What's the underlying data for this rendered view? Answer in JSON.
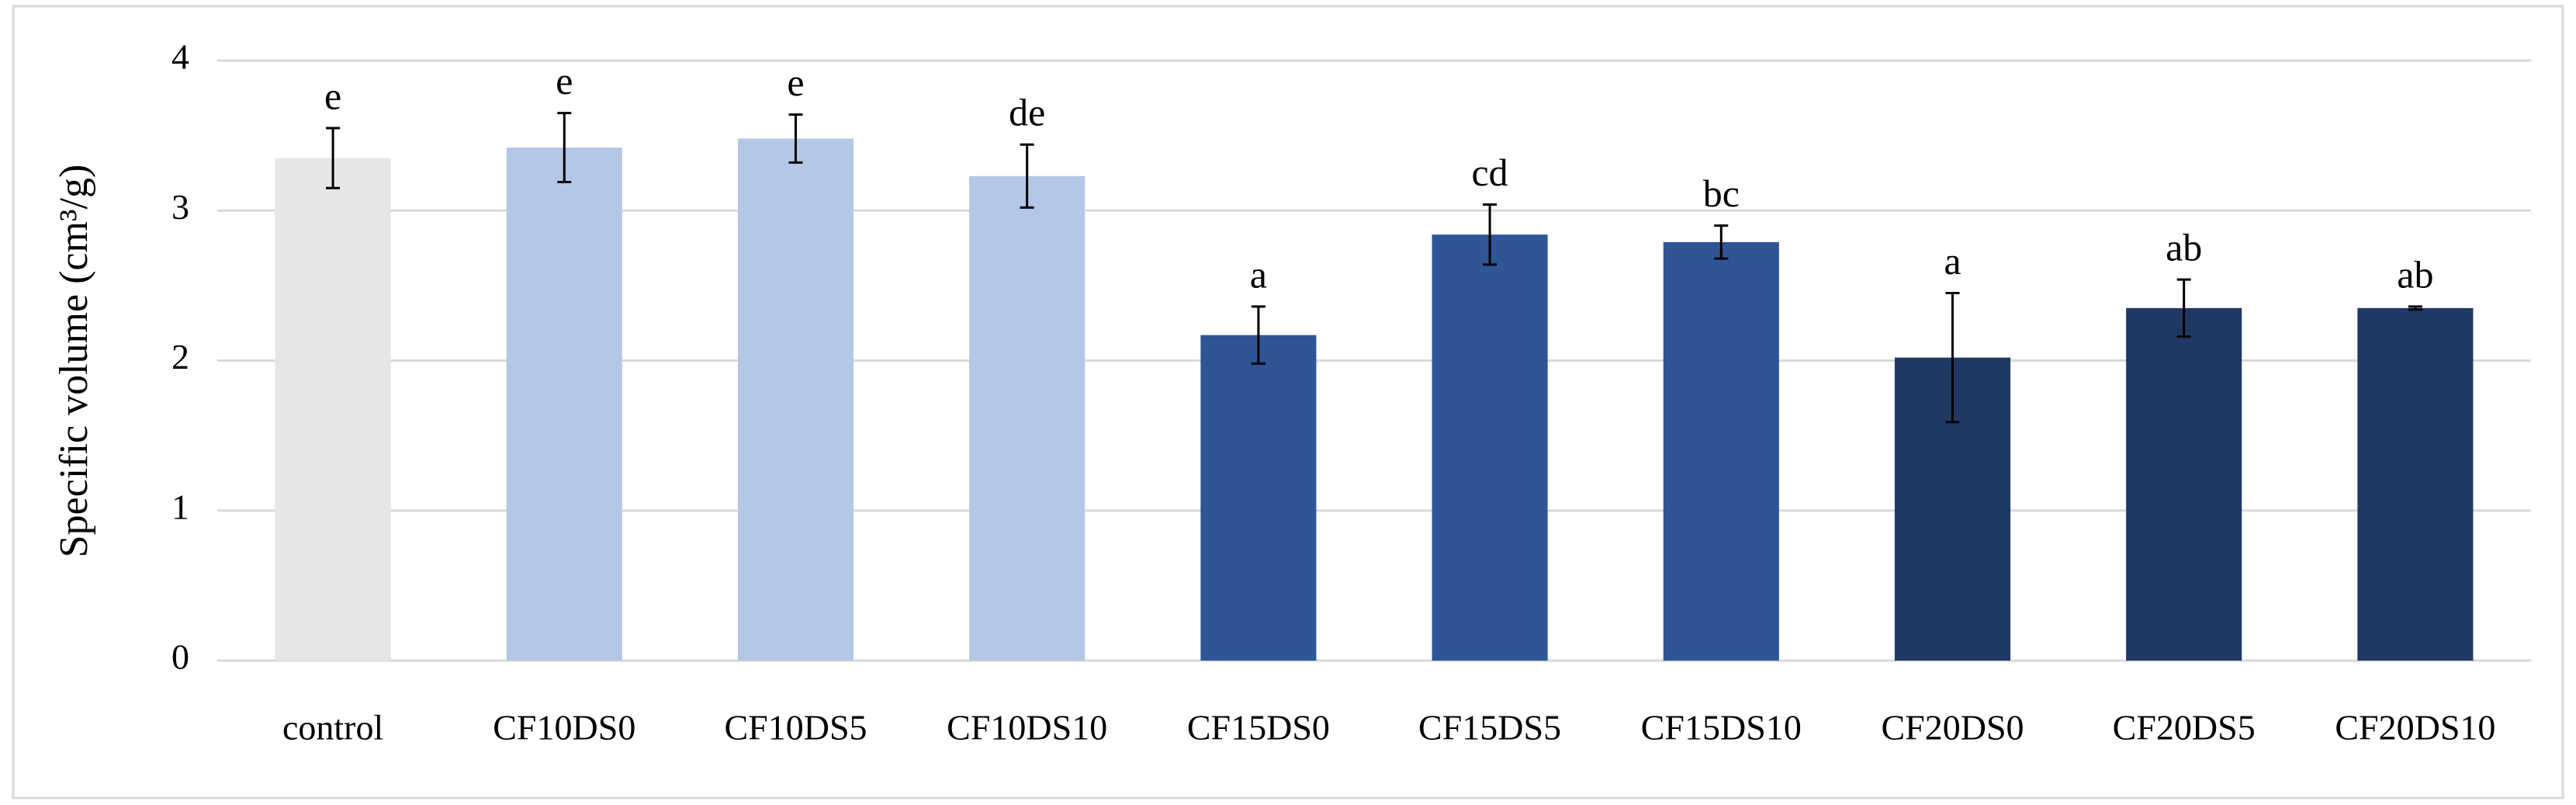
{
  "chart_data": {
    "type": "bar",
    "y_label": "Specific volume (cm³/g)",
    "categories": [
      "control",
      "CF10DS0",
      "CF10DS5",
      "CF10DS10",
      "CF15DS0",
      "CF15DS5",
      "CF15DS10",
      "CF20DS0",
      "CF20DS5",
      "CF20DS10"
    ],
    "values": [
      3.35,
      3.42,
      3.48,
      3.23,
      2.17,
      2.84,
      2.79,
      2.02,
      2.35,
      2.35
    ],
    "errors": [
      0.2,
      0.23,
      0.16,
      0.21,
      0.19,
      0.2,
      0.11,
      0.43,
      0.19,
      0.01
    ],
    "annotations": [
      "e",
      "e",
      "e",
      "de",
      "a",
      "cd",
      "bc",
      "a",
      "ab",
      "ab"
    ],
    "colors": [
      "#e7e6e6",
      "#b4c7e7",
      "#b4c7e7",
      "#b4c7e7",
      "#2f5597",
      "#2f5597",
      "#2f5597",
      "#203864",
      "#203864",
      "#203864"
    ],
    "ylim": [
      0,
      4
    ],
    "yticks": [
      0,
      1,
      2,
      3,
      4
    ],
    "grid": true
  }
}
